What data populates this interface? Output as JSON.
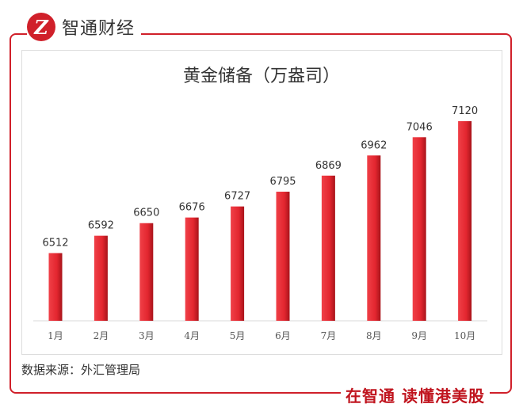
{
  "brand": {
    "logo_mark": "Z",
    "name": "智通财经",
    "slogan": "在智通 读懂港美股",
    "accent": "#d0202a"
  },
  "source": "数据来源：外汇管理局",
  "chart_data": {
    "type": "bar",
    "title": "黄金储备（万盎司）",
    "categories": [
      "1月",
      "2月",
      "3月",
      "4月",
      "5月",
      "6月",
      "7月",
      "8月",
      "9月",
      "10月"
    ],
    "values": [
      6512,
      6592,
      6650,
      6676,
      6727,
      6795,
      6869,
      6962,
      7046,
      7120
    ],
    "ylim": [
      6200,
      7120
    ],
    "grid": false,
    "bar_color": "#e3262f",
    "xlabel": "",
    "ylabel": ""
  }
}
